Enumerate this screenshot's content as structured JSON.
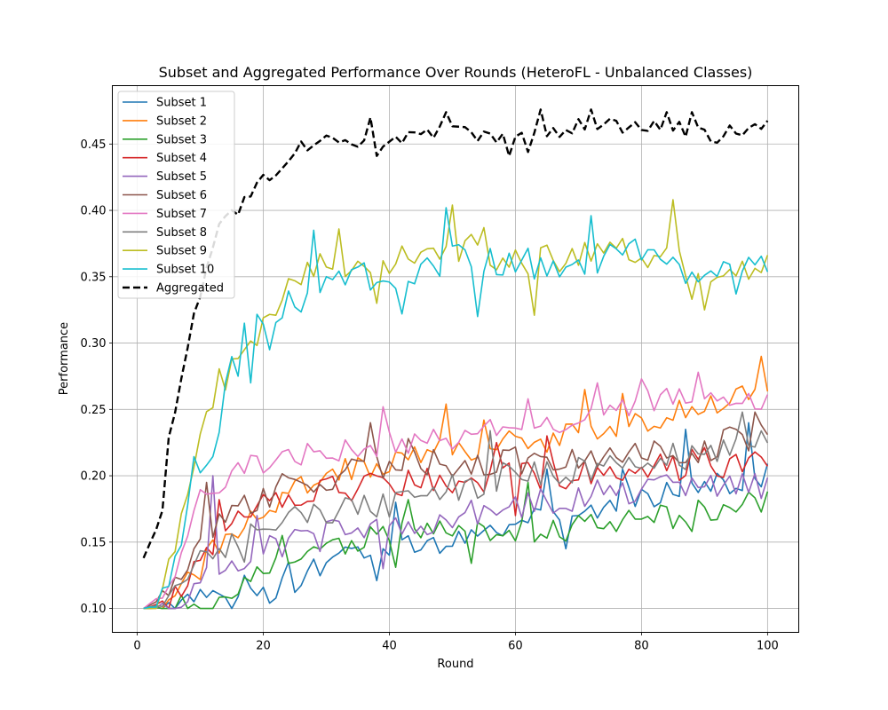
{
  "chart_data": {
    "type": "line",
    "title": "Subset and Aggregated Performance Over Rounds (HeteroFL - Unbalanced Classes)",
    "xlabel": "Round",
    "ylabel": "Performance",
    "xlim": [
      -3.95,
      104.95
    ],
    "ylim": [
      0.082,
      0.494
    ],
    "xticks": [
      0,
      20,
      40,
      60,
      80,
      100
    ],
    "yticks": [
      0.1,
      0.15,
      0.2,
      0.25,
      0.3,
      0.35,
      0.4,
      0.45
    ],
    "xtick_labels": [
      "0",
      "20",
      "40",
      "60",
      "80",
      "100"
    ],
    "ytick_labels": [
      "0.10",
      "0.15",
      "0.20",
      "0.25",
      "0.30",
      "0.35",
      "0.40",
      "0.45"
    ],
    "grid": true,
    "legend_position": "top-left",
    "x_start": 1,
    "series": [
      {
        "name": "Subset 1",
        "color": "#1f77b4",
        "dashed": false,
        "anchors": [
          [
            1,
            0.1
          ],
          [
            5,
            0.1
          ],
          [
            10,
            0.105
          ],
          [
            15,
            0.105
          ],
          [
            20,
            0.11
          ],
          [
            25,
            0.12
          ],
          [
            30,
            0.135
          ],
          [
            40,
            0.15
          ],
          [
            50,
            0.15
          ],
          [
            60,
            0.165
          ],
          [
            70,
            0.175
          ],
          [
            80,
            0.185
          ],
          [
            90,
            0.19
          ],
          [
            100,
            0.2
          ]
        ],
        "noise": 0.01,
        "spikes": [
          [
            17,
            0.125
          ],
          [
            24,
            0.135
          ],
          [
            38,
            0.121
          ],
          [
            41,
            0.18
          ],
          [
            65,
            0.205
          ],
          [
            68,
            0.145
          ],
          [
            77,
            0.205
          ],
          [
            87,
            0.235
          ],
          [
            97,
            0.24
          ]
        ]
      },
      {
        "name": "Subset 2",
        "color": "#ff7f0e",
        "dashed": false,
        "anchors": [
          [
            1,
            0.1
          ],
          [
            5,
            0.1
          ],
          [
            10,
            0.13
          ],
          [
            15,
            0.16
          ],
          [
            20,
            0.175
          ],
          [
            25,
            0.19
          ],
          [
            30,
            0.2
          ],
          [
            40,
            0.21
          ],
          [
            50,
            0.22
          ],
          [
            60,
            0.225
          ],
          [
            70,
            0.23
          ],
          [
            80,
            0.24
          ],
          [
            90,
            0.255
          ],
          [
            100,
            0.265
          ]
        ],
        "noise": 0.01,
        "spikes": [
          [
            49,
            0.254
          ],
          [
            55,
            0.242
          ],
          [
            71,
            0.265
          ],
          [
            77,
            0.262
          ],
          [
            99,
            0.29
          ]
        ]
      },
      {
        "name": "Subset 3",
        "color": "#2ca02c",
        "dashed": false,
        "anchors": [
          [
            1,
            0.1
          ],
          [
            5,
            0.1
          ],
          [
            10,
            0.102
          ],
          [
            15,
            0.11
          ],
          [
            20,
            0.125
          ],
          [
            25,
            0.135
          ],
          [
            30,
            0.145
          ],
          [
            40,
            0.155
          ],
          [
            50,
            0.16
          ],
          [
            60,
            0.16
          ],
          [
            70,
            0.16
          ],
          [
            80,
            0.165
          ],
          [
            90,
            0.175
          ],
          [
            100,
            0.18
          ]
        ],
        "noise": 0.01,
        "spikes": [
          [
            23,
            0.155
          ],
          [
            41,
            0.131
          ],
          [
            43,
            0.182
          ],
          [
            53,
            0.134
          ],
          [
            62,
            0.195
          ],
          [
            88,
            0.158
          ]
        ]
      },
      {
        "name": "Subset 4",
        "color": "#d62728",
        "dashed": false,
        "anchors": [
          [
            1,
            0.1
          ],
          [
            5,
            0.105
          ],
          [
            10,
            0.14
          ],
          [
            15,
            0.165
          ],
          [
            20,
            0.175
          ],
          [
            25,
            0.185
          ],
          [
            30,
            0.19
          ],
          [
            40,
            0.195
          ],
          [
            50,
            0.195
          ],
          [
            60,
            0.2
          ],
          [
            70,
            0.2
          ],
          [
            80,
            0.205
          ],
          [
            90,
            0.21
          ],
          [
            100,
            0.21
          ]
        ],
        "noise": 0.012,
        "spikes": [
          [
            13,
            0.182
          ],
          [
            57,
            0.225
          ],
          [
            60,
            0.17
          ],
          [
            65,
            0.23
          ]
        ]
      },
      {
        "name": "Subset 5",
        "color": "#9467bd",
        "dashed": false,
        "anchors": [
          [
            1,
            0.1
          ],
          [
            5,
            0.1
          ],
          [
            10,
            0.12
          ],
          [
            15,
            0.135
          ],
          [
            20,
            0.145
          ],
          [
            25,
            0.15
          ],
          [
            30,
            0.155
          ],
          [
            40,
            0.16
          ],
          [
            50,
            0.17
          ],
          [
            60,
            0.18
          ],
          [
            70,
            0.185
          ],
          [
            80,
            0.19
          ],
          [
            90,
            0.195
          ],
          [
            100,
            0.19
          ]
        ],
        "noise": 0.012,
        "spikes": [
          [
            12,
            0.2
          ],
          [
            19,
            0.17
          ],
          [
            39,
            0.13
          ]
        ]
      },
      {
        "name": "Subset 6",
        "color": "#8c564b",
        "dashed": false,
        "anchors": [
          [
            1,
            0.1
          ],
          [
            5,
            0.11
          ],
          [
            10,
            0.15
          ],
          [
            15,
            0.175
          ],
          [
            20,
            0.185
          ],
          [
            25,
            0.195
          ],
          [
            30,
            0.2
          ],
          [
            40,
            0.205
          ],
          [
            50,
            0.21
          ],
          [
            60,
            0.21
          ],
          [
            70,
            0.215
          ],
          [
            80,
            0.215
          ],
          [
            90,
            0.22
          ],
          [
            100,
            0.235
          ]
        ],
        "noise": 0.012,
        "spikes": [
          [
            11,
            0.195
          ],
          [
            37,
            0.24
          ],
          [
            43,
            0.228
          ],
          [
            95,
            0.235
          ],
          [
            98,
            0.248
          ]
        ]
      },
      {
        "name": "Subset 7",
        "color": "#e377c2",
        "dashed": false,
        "anchors": [
          [
            1,
            0.1
          ],
          [
            5,
            0.115
          ],
          [
            10,
            0.185
          ],
          [
            15,
            0.2
          ],
          [
            20,
            0.21
          ],
          [
            25,
            0.215
          ],
          [
            30,
            0.22
          ],
          [
            40,
            0.225
          ],
          [
            50,
            0.23
          ],
          [
            60,
            0.24
          ],
          [
            70,
            0.24
          ],
          [
            80,
            0.255
          ],
          [
            90,
            0.265
          ],
          [
            100,
            0.255
          ]
        ],
        "noise": 0.01,
        "spikes": [
          [
            39,
            0.252
          ],
          [
            62,
            0.258
          ],
          [
            73,
            0.27
          ],
          [
            80,
            0.273
          ],
          [
            89,
            0.278
          ]
        ]
      },
      {
        "name": "Subset 8",
        "color": "#7f7f7f",
        "dashed": false,
        "anchors": [
          [
            1,
            0.1
          ],
          [
            5,
            0.105
          ],
          [
            10,
            0.135
          ],
          [
            15,
            0.15
          ],
          [
            20,
            0.16
          ],
          [
            25,
            0.165
          ],
          [
            30,
            0.17
          ],
          [
            40,
            0.18
          ],
          [
            50,
            0.19
          ],
          [
            60,
            0.2
          ],
          [
            70,
            0.205
          ],
          [
            80,
            0.21
          ],
          [
            90,
            0.215
          ],
          [
            100,
            0.23
          ]
        ],
        "noise": 0.012,
        "spikes": [
          [
            17,
            0.135
          ],
          [
            56,
            0.234
          ],
          [
            96,
            0.248
          ]
        ]
      },
      {
        "name": "Subset 9",
        "color": "#bcbd22",
        "dashed": false,
        "anchors": [
          [
            1,
            0.1
          ],
          [
            3,
            0.1
          ],
          [
            5,
            0.13
          ],
          [
            8,
            0.185
          ],
          [
            10,
            0.22
          ],
          [
            13,
            0.27
          ],
          [
            16,
            0.285
          ],
          [
            20,
            0.31
          ],
          [
            23,
            0.335
          ],
          [
            27,
            0.35
          ],
          [
            30,
            0.36
          ],
          [
            40,
            0.36
          ],
          [
            50,
            0.375
          ],
          [
            60,
            0.36
          ],
          [
            70,
            0.365
          ],
          [
            80,
            0.37
          ],
          [
            90,
            0.355
          ],
          [
            100,
            0.36
          ]
        ],
        "noise": 0.012,
        "spikes": [
          [
            32,
            0.386
          ],
          [
            38,
            0.33
          ],
          [
            50,
            0.404
          ],
          [
            55,
            0.387
          ],
          [
            63,
            0.321
          ],
          [
            85,
            0.408
          ],
          [
            88,
            0.333
          ],
          [
            90,
            0.325
          ]
        ]
      },
      {
        "name": "Subset 10",
        "color": "#17becf",
        "dashed": false,
        "anchors": [
          [
            1,
            0.1
          ],
          [
            3,
            0.102
          ],
          [
            5,
            0.125
          ],
          [
            7,
            0.14
          ],
          [
            9,
            0.21
          ],
          [
            12,
            0.215
          ],
          [
            15,
            0.28
          ],
          [
            18,
            0.3
          ],
          [
            20,
            0.32
          ],
          [
            25,
            0.33
          ],
          [
            30,
            0.35
          ],
          [
            40,
            0.35
          ],
          [
            50,
            0.365
          ],
          [
            60,
            0.36
          ],
          [
            70,
            0.36
          ],
          [
            80,
            0.37
          ],
          [
            90,
            0.355
          ],
          [
            100,
            0.36
          ]
        ],
        "noise": 0.012,
        "spikes": [
          [
            17,
            0.315
          ],
          [
            18,
            0.27
          ],
          [
            21,
            0.295
          ],
          [
            28,
            0.385
          ],
          [
            42,
            0.322
          ],
          [
            49,
            0.402
          ],
          [
            54,
            0.32
          ],
          [
            72,
            0.396
          ],
          [
            87,
            0.345
          ],
          [
            95,
            0.337
          ]
        ]
      },
      {
        "name": "Aggregated",
        "color": "#000000",
        "dashed": true,
        "anchors": [
          [
            1,
            0.138
          ],
          [
            3,
            0.16
          ],
          [
            4,
            0.172
          ],
          [
            5,
            0.232
          ],
          [
            7,
            0.268
          ],
          [
            9,
            0.32
          ],
          [
            11,
            0.356
          ],
          [
            13,
            0.387
          ],
          [
            16,
            0.398
          ],
          [
            18,
            0.412
          ],
          [
            20,
            0.425
          ],
          [
            22,
            0.432
          ],
          [
            25,
            0.448
          ],
          [
            30,
            0.455
          ],
          [
            40,
            0.452
          ],
          [
            50,
            0.46
          ],
          [
            60,
            0.455
          ],
          [
            70,
            0.463
          ],
          [
            80,
            0.465
          ],
          [
            90,
            0.458
          ],
          [
            100,
            0.465
          ]
        ],
        "noise": 0.006,
        "spikes": [
          [
            37,
            0.47
          ],
          [
            38,
            0.441
          ],
          [
            49,
            0.474
          ],
          [
            59,
            0.441
          ],
          [
            62,
            0.444
          ],
          [
            64,
            0.476
          ],
          [
            72,
            0.476
          ],
          [
            84,
            0.474
          ],
          [
            88,
            0.474
          ],
          [
            91,
            0.452
          ],
          [
            92,
            0.451
          ]
        ]
      }
    ]
  }
}
